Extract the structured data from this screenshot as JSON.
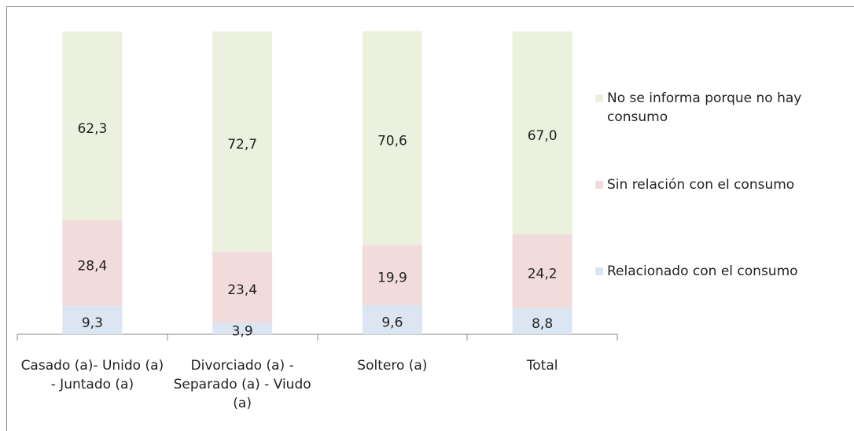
{
  "chart_data": {
    "type": "stacked_bar",
    "categories": [
      "Casado (a)- Unido (a) - Juntado (a)",
      "Divorciado (a) - Separado (a) - Viudo (a)",
      "Soltero (a)",
      "Total"
    ],
    "series": [
      {
        "name": "Relacionado con el consumo",
        "color": "#dce6f2",
        "values": [
          9.3,
          3.9,
          9.6,
          8.8
        ],
        "value_labels": [
          "9,3",
          "3,9",
          "9,6",
          "8,8"
        ]
      },
      {
        "name": "Sin relación con el consumo",
        "color": "#f2dcdb",
        "values": [
          28.4,
          23.4,
          19.9,
          24.2
        ],
        "value_labels": [
          "28,4",
          "23,4",
          "19,9",
          "24,2"
        ]
      },
      {
        "name": "No se informa porque no hay consumo",
        "color": "#ebf1de",
        "values": [
          62.3,
          72.7,
          70.6,
          67.0
        ],
        "value_labels": [
          "62,3",
          "72,7",
          "70,6",
          "67,0"
        ]
      }
    ],
    "ylim": [
      0,
      100
    ]
  }
}
